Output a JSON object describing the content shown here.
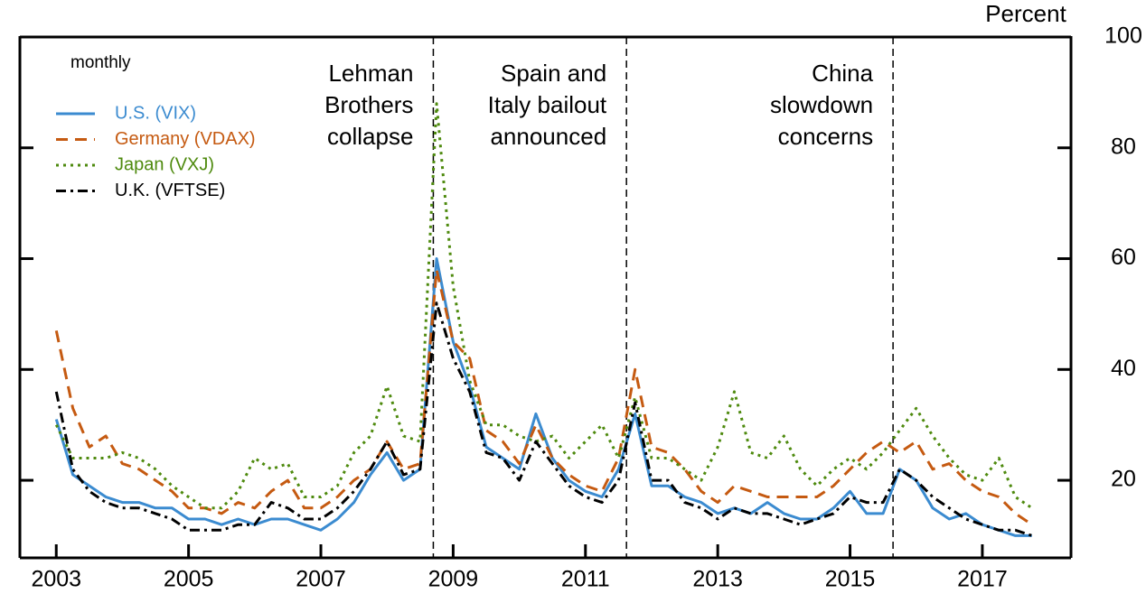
{
  "chart_data": {
    "type": "line",
    "y_label": "Percent",
    "legend_title": "monthly",
    "x": [
      2003,
      2003.25,
      2003.5,
      2003.75,
      2004,
      2004.25,
      2004.5,
      2004.75,
      2005,
      2005.25,
      2005.5,
      2005.75,
      2006,
      2006.25,
      2006.5,
      2006.75,
      2007,
      2007.25,
      2007.5,
      2007.75,
      2008,
      2008.25,
      2008.5,
      2008.75,
      2009,
      2009.25,
      2009.5,
      2009.75,
      2010,
      2010.25,
      2010.5,
      2010.75,
      2011,
      2011.25,
      2011.5,
      2011.75,
      2012,
      2012.25,
      2012.5,
      2012.75,
      2013,
      2013.25,
      2013.5,
      2013.75,
      2014,
      2014.25,
      2014.5,
      2014.75,
      2015,
      2015.25,
      2015.5,
      2015.75,
      2016,
      2016.25,
      2016.5,
      2016.75,
      2017,
      2017.25,
      2017.5,
      2017.75
    ],
    "series": [
      {
        "name": "U.S. (VIX)",
        "color": "#3b8bd0",
        "line_style": "solid",
        "values": [
          31,
          21,
          19,
          17,
          16,
          16,
          15,
          15,
          13,
          13,
          12,
          13,
          12,
          13,
          13,
          12,
          11,
          13,
          16,
          21,
          25,
          20,
          22,
          60,
          45,
          37,
          26,
          24,
          22,
          32,
          24,
          20,
          18,
          17,
          22,
          32,
          19,
          19,
          17,
          16,
          14,
          15,
          14,
          16,
          14,
          13,
          13,
          15,
          18,
          14,
          14,
          22,
          20,
          15,
          13,
          14,
          12,
          11,
          10,
          10
        ]
      },
      {
        "name": "Germany (VDAX)",
        "color": "#c55a11",
        "line_style": "dashed",
        "values": [
          47,
          33,
          26,
          28,
          23,
          22,
          20,
          18,
          15,
          15,
          14,
          16,
          15,
          18,
          20,
          15,
          15,
          17,
          20,
          22,
          27,
          22,
          23,
          58,
          45,
          42,
          29,
          27,
          23,
          30,
          24,
          21,
          19,
          18,
          24,
          40,
          26,
          25,
          22,
          18,
          16,
          19,
          18,
          17,
          17,
          17,
          17,
          19,
          22,
          25,
          27,
          25,
          27,
          22,
          23,
          20,
          18,
          17,
          14,
          12
        ]
      },
      {
        "name": "Japan (VXJ)",
        "color": "#4e8a0e",
        "line_style": "dotted",
        "values": [
          30,
          24,
          24,
          24,
          25,
          24,
          22,
          19,
          17,
          15,
          15,
          18,
          24,
          22,
          23,
          17,
          17,
          19,
          25,
          28,
          37,
          28,
          27,
          88,
          55,
          38,
          30,
          30,
          28,
          27,
          28,
          24,
          27,
          30,
          24,
          35,
          24,
          24,
          22,
          20,
          26,
          36,
          25,
          24,
          28,
          22,
          19,
          22,
          24,
          22,
          25,
          29,
          33,
          28,
          24,
          21,
          20,
          24,
          17,
          15
        ]
      },
      {
        "name": "U.K. (VFTSE)",
        "color": "#000000",
        "line_style": "dashdot",
        "values": [
          36,
          22,
          18,
          16,
          15,
          15,
          14,
          13,
          11,
          11,
          11,
          12,
          12,
          16,
          15,
          13,
          13,
          15,
          18,
          22,
          27,
          21,
          22,
          52,
          42,
          36,
          25,
          24,
          20,
          27,
          23,
          19,
          17,
          16,
          20,
          34,
          20,
          20,
          16,
          15,
          13,
          15,
          14,
          14,
          13,
          12,
          13,
          14,
          17,
          16,
          16,
          22,
          20,
          17,
          15,
          13,
          12,
          11,
          11,
          10
        ]
      }
    ],
    "annotations": [
      {
        "x": 2008.7,
        "lines": [
          "Lehman",
          "Brothers",
          "collapse"
        ]
      },
      {
        "x": 2011.62,
        "lines": [
          "Spain and",
          "Italy bailout",
          "announced"
        ]
      },
      {
        "x": 2015.65,
        "lines": [
          "China",
          "slowdown",
          "concerns"
        ]
      }
    ],
    "xlim": [
      2002.45,
      2018.34
    ],
    "xticks": [
      2003,
      2005,
      2007,
      2009,
      2011,
      2013,
      2015,
      2017
    ],
    "ylim": [
      6,
      100
    ],
    "yticks": [
      20,
      40,
      60,
      80,
      100
    ]
  }
}
